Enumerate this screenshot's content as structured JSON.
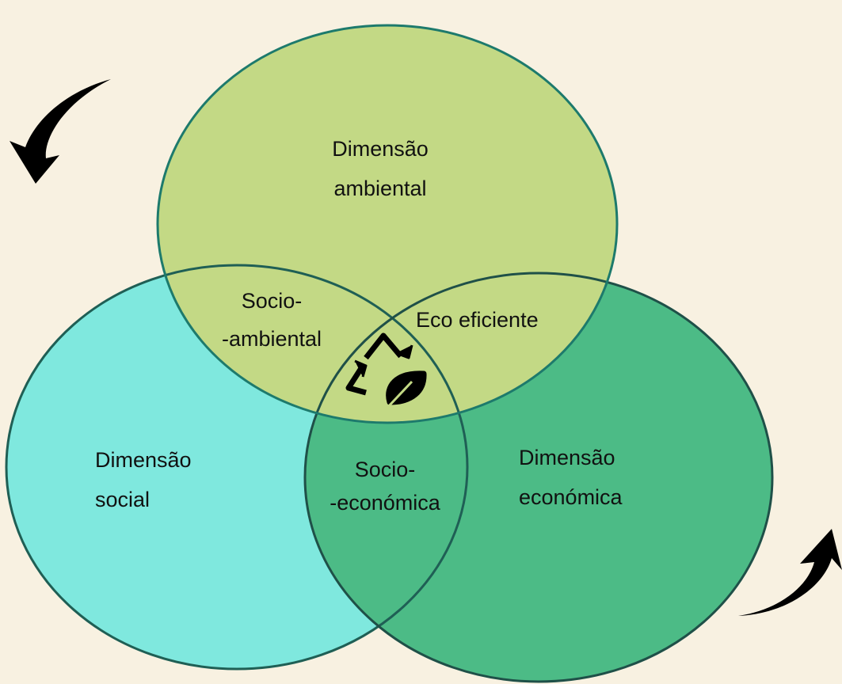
{
  "regions": [
    {
      "lines": [
        "Dimensão",
        "ambiental"
      ]
    },
    {
      "lines": [
        "Dimensão",
        "social"
      ]
    },
    {
      "lines": [
        "Dimensão",
        "económica"
      ]
    },
    {
      "lines": [
        "Socio-",
        "-ambiental"
      ]
    },
    {
      "lines": [
        "Eco eficiente"
      ]
    },
    {
      "lines": [
        "Socio-",
        "-económica"
      ]
    }
  ]
}
